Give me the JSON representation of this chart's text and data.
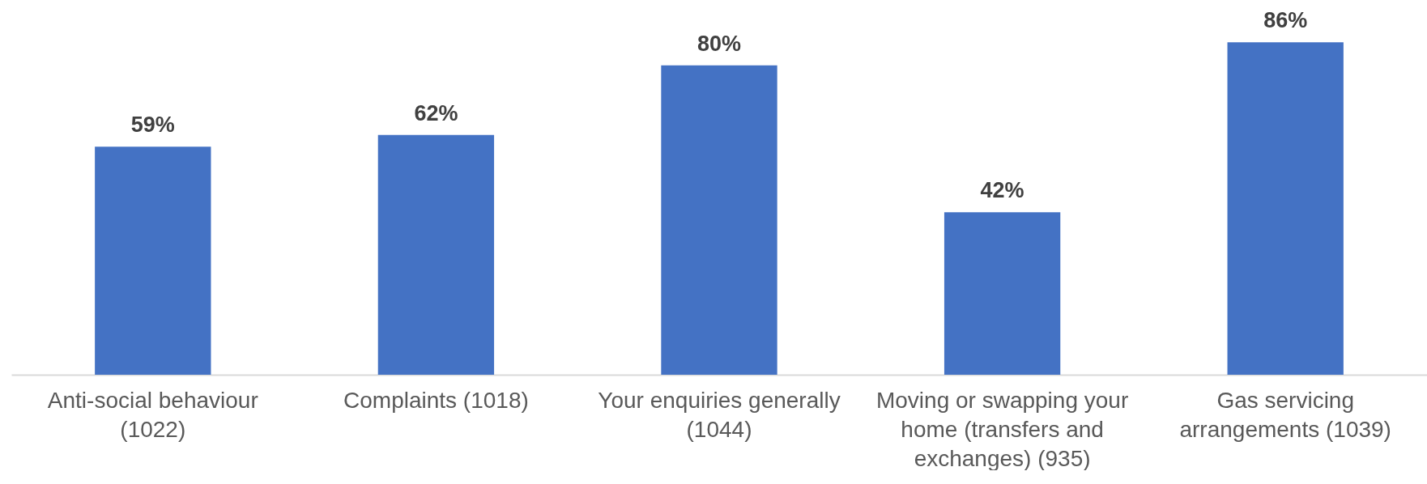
{
  "chart_data": {
    "type": "bar",
    "categories": [
      "Anti-social behaviour (1022)",
      "Complaints (1018)",
      "Your enquiries generally (1044)",
      "Moving or swapping your home (transfers and exchanges) (935)",
      "Gas servicing arrangements (1039)"
    ],
    "values": [
      59,
      62,
      80,
      42,
      86
    ],
    "color": "#4472c4",
    "value_labels": [
      "59%",
      "62%",
      "80%",
      "42%",
      "86%"
    ],
    "grid": false,
    "tick_labels": "x"
  }
}
